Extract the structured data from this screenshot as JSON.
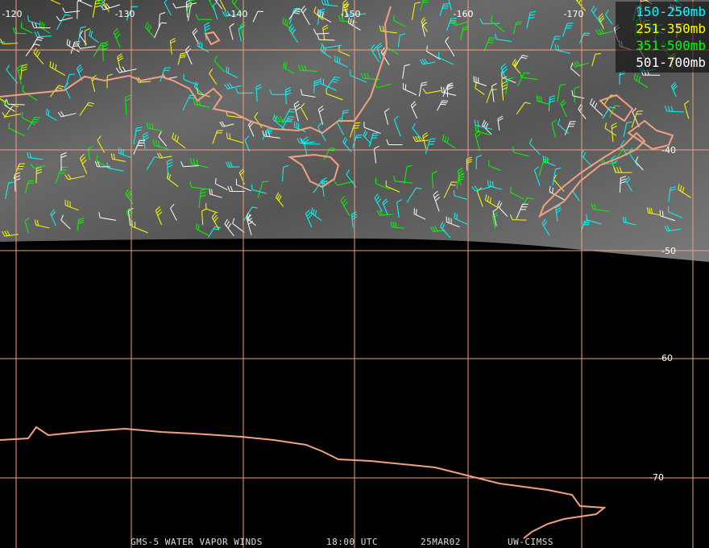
{
  "map": {
    "longitude_labels": [
      "-120",
      "-130",
      "-140",
      "-150",
      "-160",
      "-170"
    ],
    "latitude_labels": [
      "-40",
      "-50",
      "-60",
      "-70"
    ],
    "legend": [
      {
        "label": "150-250mb",
        "color": "#00ffff"
      },
      {
        "label": "251-350mb",
        "color": "#ffff00"
      },
      {
        "label": "351-500mb",
        "color": "#00ff00"
      },
      {
        "label": "501-700mb",
        "color": "#ffffff"
      }
    ],
    "footer": [
      "GMS-5 WATER VAPOR WINDS",
      "18:00 UTC",
      "25MAR02",
      "UW-CIMSS"
    ]
  }
}
